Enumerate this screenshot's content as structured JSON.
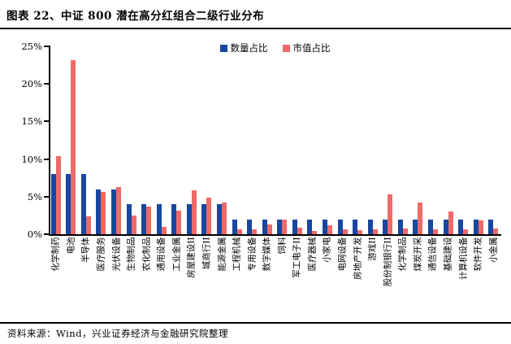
{
  "header": {
    "title": "图表 22、中证 800 潜在高分红组合二级行业分布"
  },
  "footer": {
    "source": "资料来源：Wind，兴业证券经济与金融研究院整理"
  },
  "colors": {
    "series1": "#17479E",
    "series2": "#EE6A68",
    "axis": "#000000"
  },
  "chart_data": {
    "type": "bar",
    "title": "图表 22、中证 800 潜在高分红组合二级行业分布",
    "xlabel": "",
    "ylabel": "",
    "ylim": [
      0,
      25
    ],
    "yticks": [
      "0%",
      "5%",
      "10%",
      "15%",
      "20%",
      "25%"
    ],
    "grid": false,
    "legend_position": "top-center",
    "categories": [
      "化学制药",
      "电池",
      "半导体",
      "医疗服务",
      "光伏设备",
      "生物制品",
      "农化制品",
      "通用设备",
      "工业金属",
      "房屋建设II",
      "城商行II",
      "能源金属",
      "工程机械",
      "专用设备",
      "数字媒体",
      "饲料",
      "军工电子II",
      "医疗器械",
      "小家电",
      "电网设备",
      "房地产开发",
      "游戏II",
      "股份制银行II",
      "化学制品",
      "煤炭开采",
      "通信设备",
      "基础建设",
      "计算机设备",
      "软件开发",
      "小金属"
    ],
    "series": [
      {
        "name": "数量占比",
        "color": "#17479E",
        "values": [
          8,
          8,
          8,
          6,
          6,
          4,
          4,
          4,
          4,
          4,
          4,
          4,
          2,
          2,
          2,
          2,
          2,
          2,
          2,
          2,
          2,
          2,
          2,
          2,
          2,
          2,
          2,
          2,
          2,
          2
        ]
      },
      {
        "name": "市值占比",
        "color": "#EE6A68",
        "values": [
          10.4,
          23.2,
          2.4,
          5.6,
          6.3,
          2.5,
          3.7,
          1.0,
          3.1,
          5.8,
          4.9,
          4.2,
          0.6,
          0.7,
          1.3,
          2.0,
          0.9,
          0.4,
          1.2,
          0.6,
          0.5,
          0.7,
          5.3,
          0.8,
          4.2,
          0.6,
          3.0,
          0.6,
          1.8,
          0.8
        ]
      }
    ]
  }
}
